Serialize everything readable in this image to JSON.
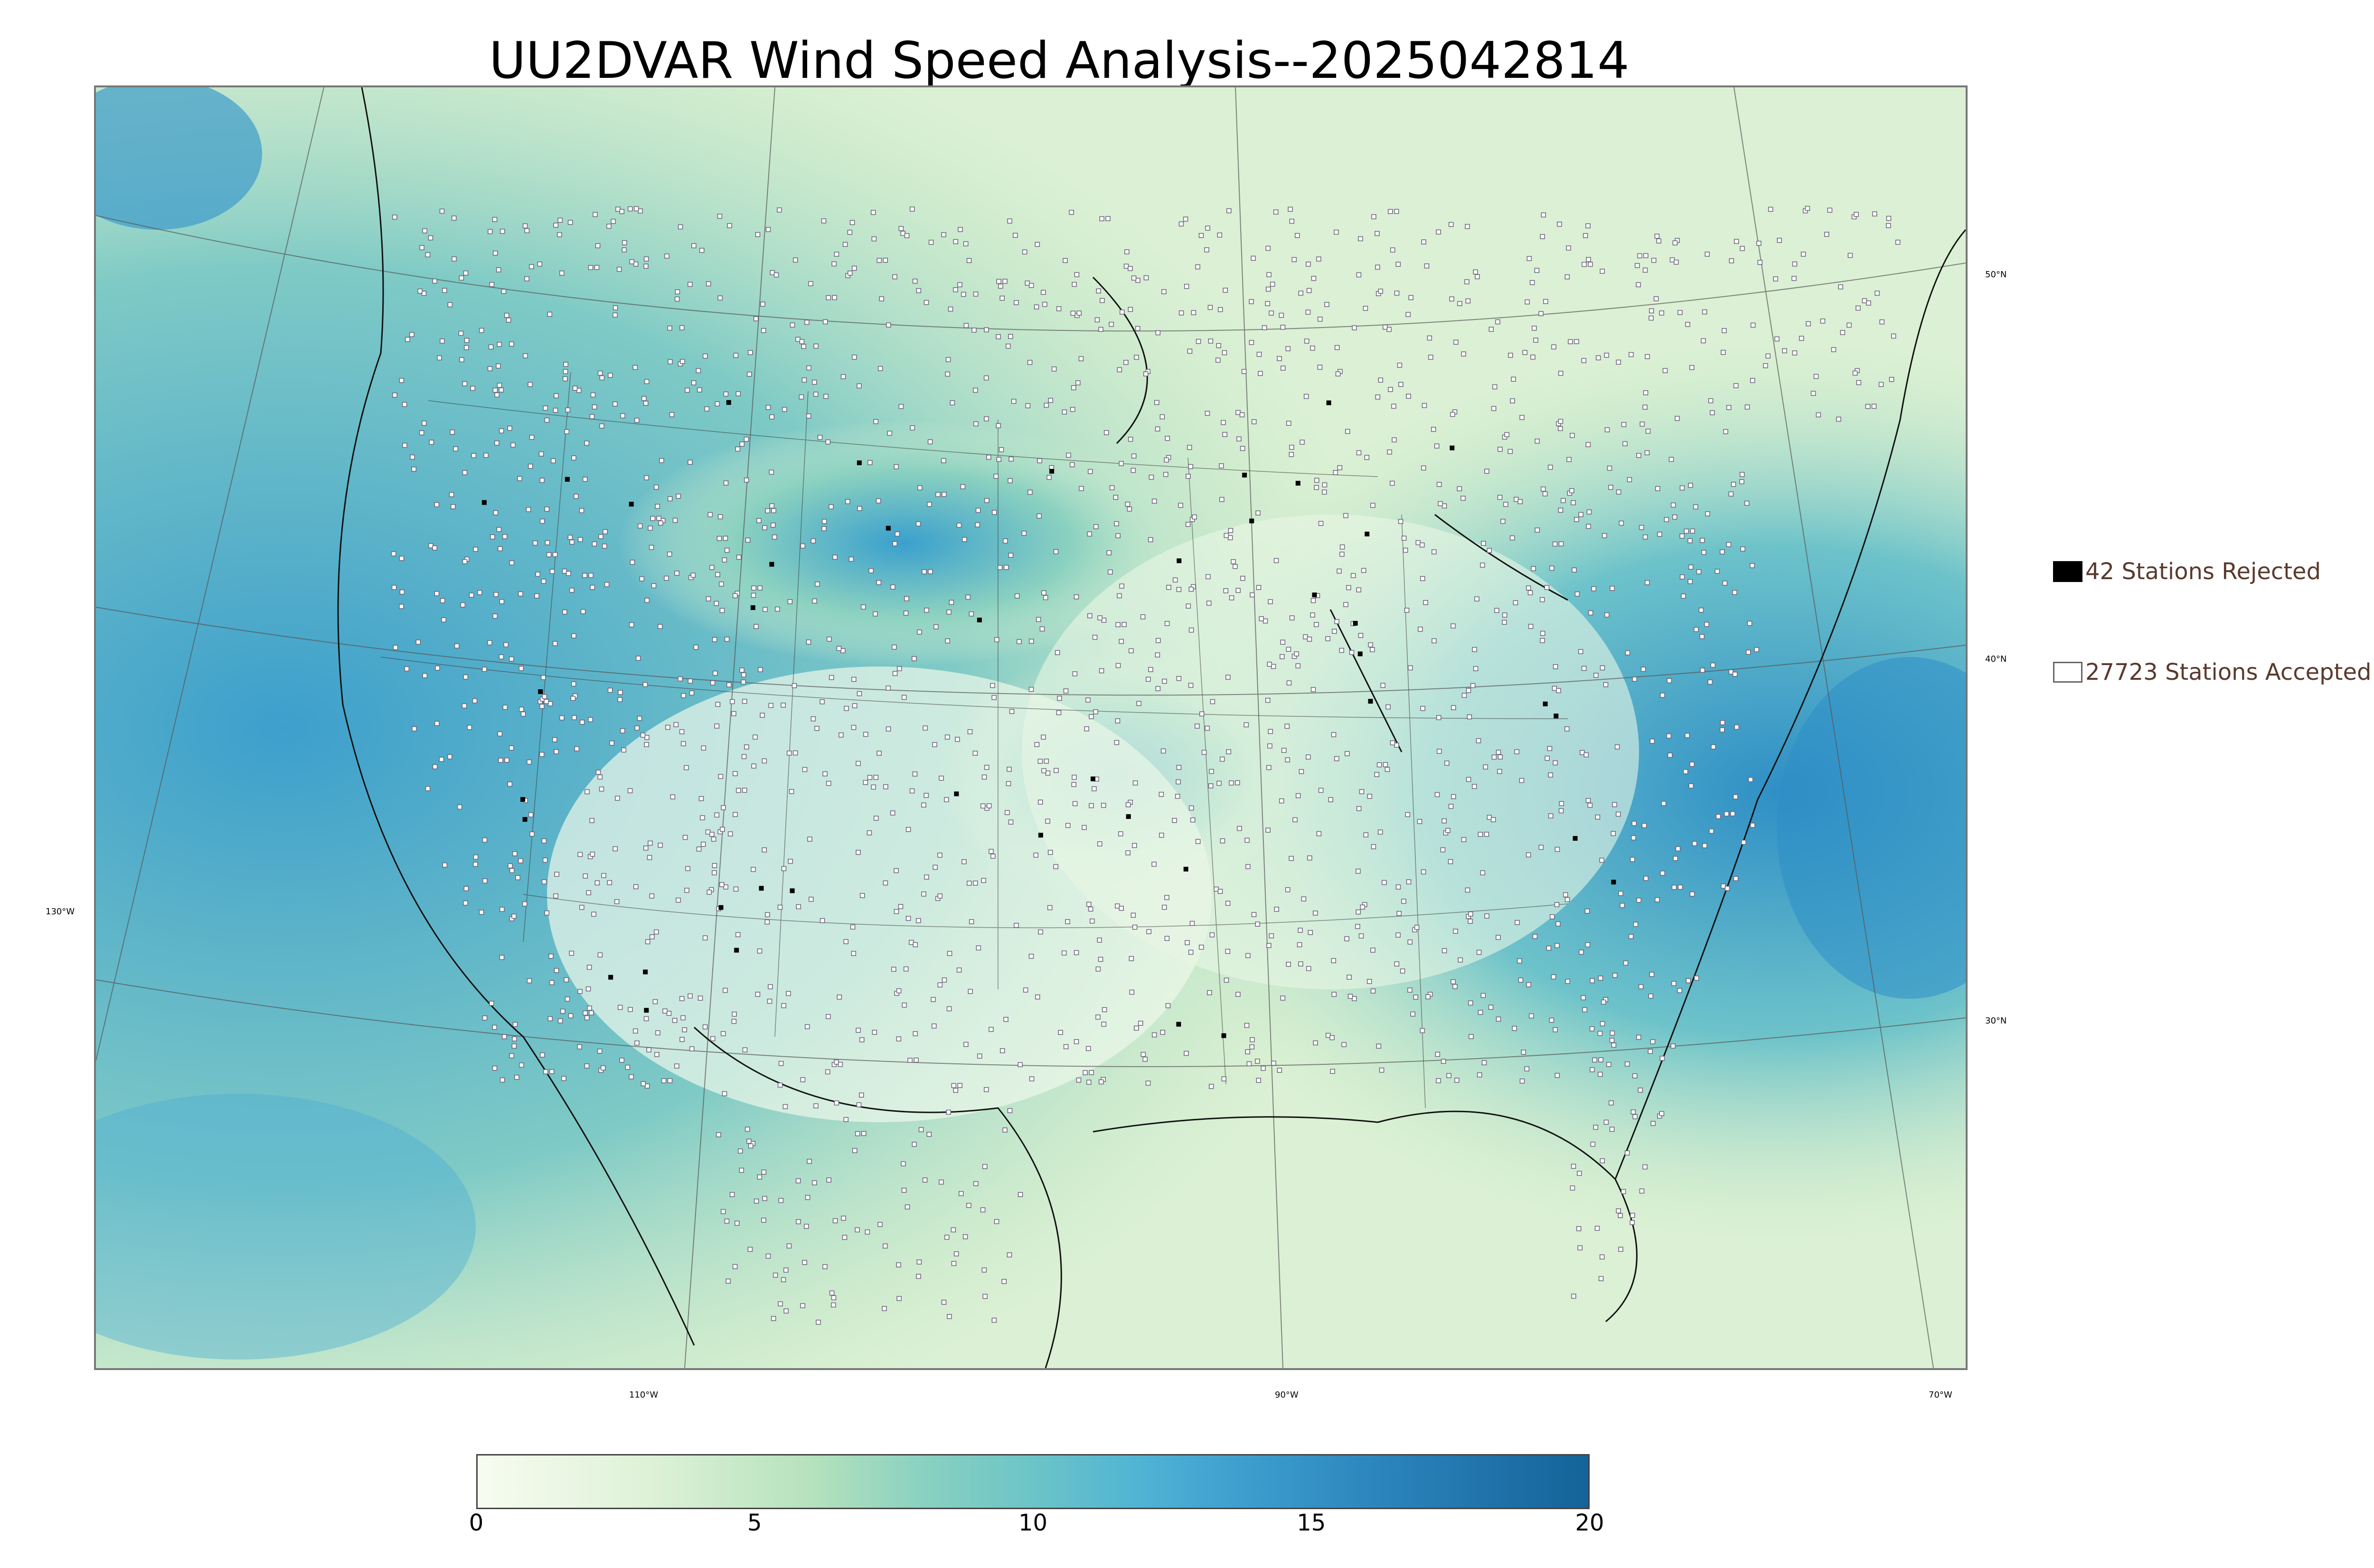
{
  "title": "UU2DVAR Wind Speed Analysis--2025042814",
  "map": {
    "projection": "Lambert conformal",
    "region": "CONUS",
    "field": "wind speed",
    "colormap": "GnBu",
    "colors": {
      "low": "#f7fcf0",
      "mid": "#a8ddb5",
      "high": "#4eb3d3",
      "max": "#08589e",
      "station_outline": "#6b6378",
      "state_lines": "#333333"
    },
    "longitude_labels": [
      "130°W",
      "110°W",
      "90°W",
      "70°W"
    ],
    "latitude_labels": [
      "50°N",
      "40°N",
      "30°N"
    ]
  },
  "legend": {
    "rejected": {
      "count": 42,
      "label": "42 Stations Rejected",
      "marker": "filled-black-square"
    },
    "accepted": {
      "count": 27723,
      "label": "27723 Stations Accepted",
      "marker": "hollow-square"
    }
  },
  "colorbar": {
    "min": 0,
    "max": 20,
    "ticks": [
      "0",
      "5",
      "10",
      "15",
      "20"
    ],
    "stops": [
      {
        "value": 0,
        "color": "#f7fcf0"
      },
      {
        "value": 3,
        "color": "#dff2d8"
      },
      {
        "value": 6,
        "color": "#b6e2bc"
      },
      {
        "value": 8,
        "color": "#8ad1c0"
      },
      {
        "value": 10,
        "color": "#6cc4c7"
      },
      {
        "value": 12,
        "color": "#4fb3d4"
      },
      {
        "value": 13.6,
        "color": "#3fa0cf"
      },
      {
        "value": 16.2,
        "color": "#2c85bd"
      },
      {
        "value": 20,
        "color": "#146399"
      }
    ]
  }
}
